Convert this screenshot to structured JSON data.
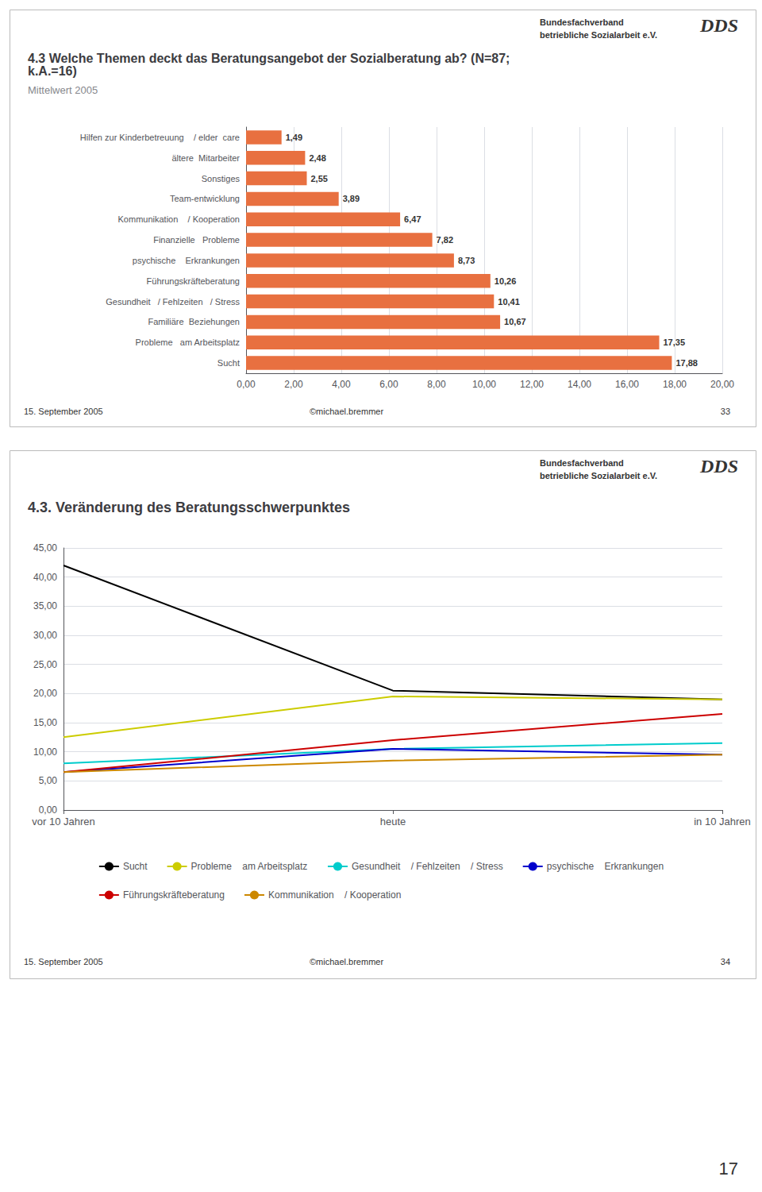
{
  "chart_data": [
    {
      "type": "bar",
      "orientation": "horizontal",
      "title": "4.3 Welche Themen deckt das Beratungsangebot der Sozialberatung ab? (N=87; k.A.=16)",
      "subtitle": "Mittelwert 2005",
      "categories": [
        "Hilfen zur Kinderbetreuung    / elder  care",
        "ältere  Mitarbeiter",
        "Sonstiges",
        "Team-entwicklung",
        "Kommunikation    / Kooperation",
        "Finanzielle   Probleme",
        "psychische    Erkrankungen",
        "Führungskräfteberatung",
        "Gesundheit   / Fehlzeiten   / Stress",
        "Familiäre  Beziehungen",
        "Probleme   am Arbeitsplatz",
        "Sucht"
      ],
      "values": [
        1.49,
        2.48,
        2.55,
        3.89,
        6.47,
        7.82,
        8.73,
        10.26,
        10.41,
        10.67,
        17.35,
        17.88
      ],
      "value_labels": [
        "1,49",
        "2,48",
        "2,55",
        "3,89",
        "6,47",
        "7,82",
        "8,73",
        "10,26",
        "10,41",
        "10,67",
        "17,35",
        "17,88"
      ],
      "data_labels": true,
      "color": "#E87040",
      "xlim": [
        0,
        20
      ],
      "xticks": [
        {
          "value": 0,
          "label": "0,00"
        },
        {
          "value": 2,
          "label": "2,00"
        },
        {
          "value": 4,
          "label": "4,00"
        },
        {
          "value": 6,
          "label": "6,00"
        },
        {
          "value": 8,
          "label": "8,00"
        },
        {
          "value": 10,
          "label": "10,00"
        },
        {
          "value": 12,
          "label": "12,00"
        },
        {
          "value": 14,
          "label": "14,00"
        },
        {
          "value": 16,
          "label": "16,00"
        },
        {
          "value": 18,
          "label": "18,00"
        },
        {
          "value": 20,
          "label": "20,00"
        }
      ],
      "grid": true,
      "annotations": [
        "Bundesfachverband",
        "betriebliche Sozialarbeit e.V.",
        "DDS",
        "15. September 2005",
        "©michael.bremmer",
        "33"
      ]
    },
    {
      "type": "line",
      "title": "4.3. Veränderung des Beratungsschwerpunktes",
      "categories": [
        "vor 10 Jahren",
        "heute",
        "in 10 Jahren"
      ],
      "series": [
        {
          "name": "Sucht",
          "color": "#000000",
          "values": [
            42.0,
            20.5,
            19.0
          ]
        },
        {
          "name": "Probleme    am Arbeitsplatz",
          "color": "#CCCC00",
          "values": [
            12.5,
            19.5,
            19.0
          ]
        },
        {
          "name": "Gesundheit    / Fehlzeiten    / Stress",
          "color": "#00CCCC",
          "values": [
            8.0,
            10.5,
            11.5
          ]
        },
        {
          "name": "psychische    Erkrankungen",
          "color": "#0000CC",
          "values": [
            6.5,
            10.5,
            9.5
          ]
        },
        {
          "name": "Führungskräfteberatung",
          "color": "#CC0000",
          "values": [
            6.5,
            12.0,
            16.5
          ]
        },
        {
          "name": "Kommunikation    / Kooperation",
          "color": "#CC8800",
          "values": [
            6.5,
            8.5,
            9.5
          ]
        }
      ],
      "ylim": [
        0,
        45
      ],
      "yticks": [
        {
          "value": 0,
          "label": "0,00"
        },
        {
          "value": 5,
          "label": "5,00"
        },
        {
          "value": 10,
          "label": "10,00"
        },
        {
          "value": 15,
          "label": "15,00"
        },
        {
          "value": 20,
          "label": "20,00"
        },
        {
          "value": 25,
          "label": "25,00"
        },
        {
          "value": 30,
          "label": "30,00"
        },
        {
          "value": 35,
          "label": "35,00"
        },
        {
          "value": 40,
          "label": "40,00"
        },
        {
          "value": 45,
          "label": "45,00"
        }
      ],
      "grid": true,
      "legend": "bottom",
      "annotations": [
        "Bundesfachverband",
        "betriebliche Sozialarbeit e.V.",
        "DDS",
        "15. September 2005",
        "©michael.bremmer",
        "34",
        "17"
      ]
    }
  ]
}
